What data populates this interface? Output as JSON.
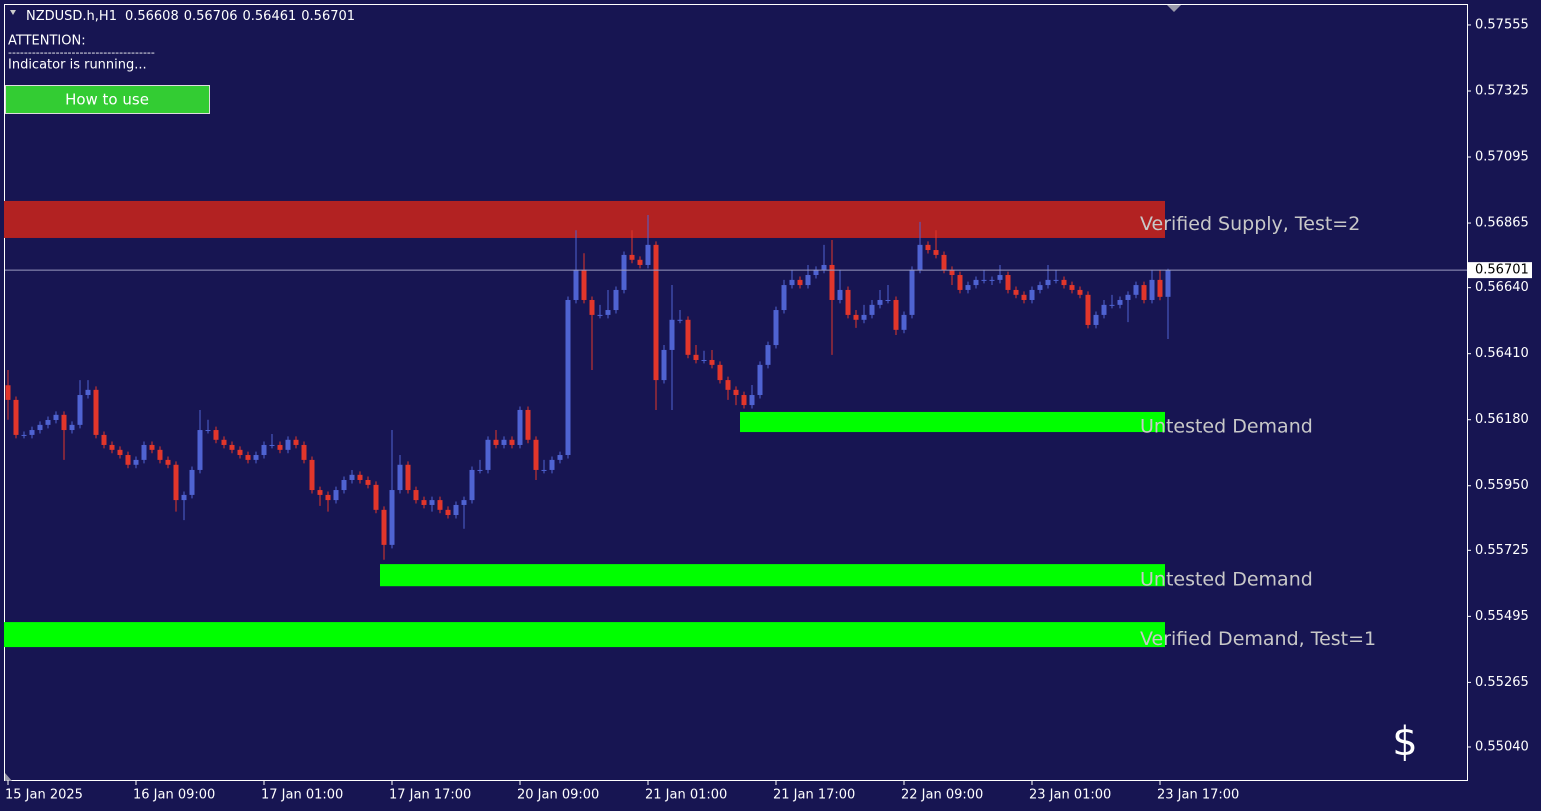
{
  "chart_data": {
    "type": "candlestick",
    "symbol": "NZDUSD.h,H1",
    "attention": "ATTENTION:",
    "separator": "-------------------------------------",
    "status": "Indicator is running...",
    "button": "How to use",
    "icon": "$",
    "colors": {
      "background": "#171552",
      "up": "#4f63d2",
      "down": "#e2362b",
      "axis": "#ffffff",
      "price_line": "#9a9ac0"
    },
    "categories": [
      "15 Jan 2025",
      null,
      null,
      null,
      null,
      null,
      null,
      null,
      null,
      null,
      null,
      null,
      null,
      null,
      null,
      null,
      "16 Jan 09:00",
      null,
      null,
      null,
      null,
      null,
      null,
      null,
      null,
      null,
      null,
      null,
      null,
      null,
      null,
      null,
      "17 Jan 01:00",
      null,
      null,
      null,
      null,
      null,
      null,
      null,
      null,
      null,
      null,
      null,
      null,
      null,
      null,
      null,
      "17 Jan 17:00",
      null,
      null,
      null,
      null,
      null,
      null,
      null,
      null,
      null,
      null,
      null,
      null,
      null,
      null,
      null,
      "20 Jan 09:00",
      null,
      null,
      null,
      null,
      null,
      null,
      null,
      null,
      null,
      null,
      null,
      null,
      null,
      null,
      null,
      "21 Jan 01:00",
      null,
      null,
      null,
      null,
      null,
      null,
      null,
      null,
      null,
      null,
      null,
      null,
      null,
      null,
      null,
      "21 Jan 17:00",
      null,
      null,
      null,
      null,
      null,
      null,
      null,
      null,
      null,
      null,
      null,
      null,
      null,
      null,
      null,
      "22 Jan 09:00",
      null,
      null,
      null,
      null,
      null,
      null,
      null,
      null,
      null,
      null,
      null,
      null,
      null,
      null,
      null,
      "23 Jan 01:00",
      null,
      null,
      null,
      null,
      null,
      null,
      null,
      null,
      null,
      null,
      null,
      null,
      null,
      null,
      null,
      "23 Jan 17:00",
      null
    ],
    "open": [
      0.563,
      0.56249,
      0.56127,
      0.56127,
      0.56144,
      0.56162,
      0.56179,
      0.56197,
      0.56144,
      0.56162,
      0.56266,
      0.56284,
      0.56127,
      0.56092,
      0.56075,
      0.56057,
      0.56023,
      0.5604,
      0.56092,
      0.56075,
      0.5604,
      0.56023,
      0.559,
      0.55918,
      0.56005,
      0.56144,
      0.56144,
      0.5611,
      0.56092,
      0.56075,
      0.56057,
      0.5604,
      0.56057,
      0.56092,
      0.56092,
      0.56075,
      0.5611,
      0.56092,
      0.5604,
      0.55935,
      0.55918,
      0.559,
      0.55935,
      0.5597,
      0.55988,
      0.5597,
      0.55953,
      0.55866,
      0.55744,
      0.55935,
      0.56023,
      0.55935,
      0.559,
      0.55883,
      0.559,
      0.55866,
      0.55848,
      0.55883,
      0.559,
      0.56005,
      0.56005,
      0.5611,
      0.56092,
      0.5611,
      0.56092,
      0.56214,
      0.5611,
      0.56005,
      0.56005,
      0.5604,
      0.56057,
      0.56597,
      0.56702,
      0.56597,
      0.56545,
      0.56545,
      0.56562,
      0.56632,
      0.56754,
      0.56737,
      0.56719,
      0.56789,
      0.56318,
      0.56423,
      0.56528,
      0.56528,
      0.56406,
      0.56388,
      0.56388,
      0.56371,
      0.56318,
      0.56284,
      0.56266,
      0.56231,
      0.56266,
      0.56371,
      0.5644,
      0.56562,
      0.56649,
      0.56667,
      0.56649,
      0.56684,
      0.56702,
      0.56719,
      0.56597,
      0.56632,
      0.56545,
      0.56528,
      0.56545,
      0.5658,
      0.56597,
      0.56597,
      0.56493,
      0.56545,
      0.56702,
      0.56789,
      0.56771,
      0.56754,
      0.56702,
      0.56684,
      0.56632,
      0.56649,
      0.56667,
      0.56667,
      0.56667,
      0.56684,
      0.56632,
      0.56615,
      0.56597,
      0.56632,
      0.56649,
      0.56667,
      0.56667,
      0.56649,
      0.56632,
      0.56615,
      0.5651,
      0.56545,
      0.5658,
      0.5658,
      0.56597,
      0.56615,
      0.56649,
      0.56597,
      0.56667,
      0.56608
    ],
    "high": [
      0.56353,
      0.56261,
      0.56139,
      0.56156,
      0.56174,
      0.56191,
      0.56209,
      0.56209,
      0.56174,
      0.56318,
      0.56318,
      0.56296,
      0.56139,
      0.56104,
      0.56087,
      0.56069,
      0.56052,
      0.56104,
      0.56104,
      0.56087,
      0.56052,
      0.56035,
      0.5593,
      0.56017,
      0.56214,
      0.5618,
      0.56156,
      0.56122,
      0.56104,
      0.56087,
      0.56069,
      0.56069,
      0.56104,
      0.5613,
      0.56104,
      0.56122,
      0.56122,
      0.56104,
      0.56052,
      0.55947,
      0.5593,
      0.55947,
      0.55982,
      0.56005,
      0.56,
      0.55982,
      0.55965,
      0.55878,
      0.56144,
      0.56057,
      0.56035,
      0.55947,
      0.55912,
      0.55912,
      0.55912,
      0.55878,
      0.55895,
      0.55912,
      0.56017,
      0.5604,
      0.56122,
      0.56144,
      0.56122,
      0.56122,
      0.56226,
      0.56226,
      0.56122,
      0.5604,
      0.56052,
      0.56069,
      0.56609,
      0.5684,
      0.5676,
      0.56609,
      0.5658,
      0.56632,
      0.56644,
      0.56766,
      0.5684,
      0.56749,
      0.56893,
      0.56801,
      0.5644,
      0.56649,
      0.56562,
      0.5654,
      0.5644,
      0.5642,
      0.56423,
      0.56383,
      0.5633,
      0.56296,
      0.56278,
      0.56301,
      0.56383,
      0.56452,
      0.56574,
      0.56667,
      0.56702,
      0.56679,
      0.56719,
      0.56714,
      0.56789,
      0.56806,
      0.56702,
      0.56644,
      0.56562,
      0.5658,
      0.56597,
      0.56632,
      0.56649,
      0.56609,
      0.56557,
      0.56714,
      0.56869,
      0.56801,
      0.5684,
      0.56766,
      0.56714,
      0.56696,
      0.56661,
      0.56679,
      0.56702,
      0.56679,
      0.56719,
      0.56696,
      0.56644,
      0.56627,
      0.56644,
      0.56661,
      0.56719,
      0.56702,
      0.56679,
      0.56661,
      0.56644,
      0.56627,
      0.56557,
      0.56597,
      0.56615,
      0.56609,
      0.56627,
      0.56661,
      0.56661,
      0.56702,
      0.56702,
      0.56706
    ],
    "low": [
      0.5618,
      0.56115,
      0.56115,
      0.56115,
      0.56132,
      0.5615,
      0.56167,
      0.5604,
      0.56132,
      0.5615,
      0.56254,
      0.56115,
      0.5608,
      0.56063,
      0.56045,
      0.56011,
      0.56011,
      0.56028,
      0.56063,
      0.56028,
      0.56011,
      0.5586,
      0.5583,
      0.55906,
      0.55993,
      0.56132,
      0.56098,
      0.5608,
      0.56063,
      0.56045,
      0.56028,
      0.56028,
      0.56045,
      0.5608,
      0.56063,
      0.56063,
      0.5608,
      0.56028,
      0.55923,
      0.5588,
      0.5586,
      0.55888,
      0.55923,
      0.55958,
      0.55958,
      0.55941,
      0.55854,
      0.55692,
      0.55732,
      0.55923,
      0.55923,
      0.55888,
      0.55871,
      0.5586,
      0.55854,
      0.55836,
      0.55836,
      0.558,
      0.55888,
      0.55993,
      0.55993,
      0.5608,
      0.5608,
      0.5608,
      0.5608,
      0.56098,
      0.5597,
      0.55993,
      0.55993,
      0.56028,
      0.56045,
      0.56585,
      0.56585,
      0.56353,
      0.56533,
      0.56533,
      0.5655,
      0.5662,
      0.56725,
      0.56707,
      0.56707,
      0.56214,
      0.56306,
      0.56214,
      0.56516,
      0.56394,
      0.56376,
      0.56376,
      0.56359,
      0.56306,
      0.56249,
      0.56231,
      0.56219,
      0.56219,
      0.56254,
      0.56359,
      0.56428,
      0.5655,
      0.56637,
      0.56637,
      0.56637,
      0.56672,
      0.5669,
      0.56406,
      0.56585,
      0.56533,
      0.565,
      0.56516,
      0.56533,
      0.56568,
      0.56585,
      0.56475,
      0.56481,
      0.56533,
      0.5669,
      0.56759,
      0.56742,
      0.5669,
      0.56649,
      0.5662,
      0.5662,
      0.56637,
      0.56655,
      0.56649,
      0.56655,
      0.5662,
      0.56603,
      0.56585,
      0.56585,
      0.5662,
      0.56637,
      0.56655,
      0.56637,
      0.5662,
      0.56603,
      0.56498,
      0.56498,
      0.56533,
      0.56568,
      0.56568,
      0.5652,
      0.56603,
      0.56585,
      0.56585,
      0.56596,
      0.56461
    ],
    "close": [
      0.56249,
      0.56127,
      0.56127,
      0.56144,
      0.56162,
      0.56179,
      0.56197,
      0.56144,
      0.56162,
      0.56266,
      0.56284,
      0.56127,
      0.56092,
      0.56075,
      0.56057,
      0.56023,
      0.5604,
      0.56092,
      0.56075,
      0.5604,
      0.56023,
      0.559,
      0.55918,
      0.56005,
      0.56144,
      0.56144,
      0.5611,
      0.56092,
      0.56075,
      0.56057,
      0.5604,
      0.56057,
      0.56092,
      0.56092,
      0.56075,
      0.5611,
      0.56092,
      0.5604,
      0.55935,
      0.55918,
      0.559,
      0.55935,
      0.5597,
      0.55988,
      0.5597,
      0.55953,
      0.55866,
      0.55744,
      0.55935,
      0.56023,
      0.55935,
      0.559,
      0.55883,
      0.559,
      0.55866,
      0.55848,
      0.55883,
      0.559,
      0.56005,
      0.56005,
      0.5611,
      0.56092,
      0.5611,
      0.56092,
      0.56214,
      0.5611,
      0.56005,
      0.56005,
      0.5604,
      0.56057,
      0.56597,
      0.56702,
      0.56597,
      0.56545,
      0.56545,
      0.56562,
      0.56632,
      0.56754,
      0.56737,
      0.56719,
      0.56789,
      0.56318,
      0.56423,
      0.56528,
      0.56528,
      0.56406,
      0.56388,
      0.56388,
      0.56371,
      0.56318,
      0.56284,
      0.56266,
      0.56231,
      0.56266,
      0.56371,
      0.5644,
      0.56562,
      0.56649,
      0.56667,
      0.56649,
      0.56684,
      0.56702,
      0.56719,
      0.56597,
      0.56632,
      0.56545,
      0.56528,
      0.56545,
      0.5658,
      0.56597,
      0.56597,
      0.56493,
      0.56545,
      0.56702,
      0.56789,
      0.56771,
      0.56754,
      0.56702,
      0.56684,
      0.56632,
      0.56649,
      0.56667,
      0.56667,
      0.56667,
      0.56684,
      0.56632,
      0.56615,
      0.56597,
      0.56632,
      0.56649,
      0.56667,
      0.56667,
      0.56649,
      0.56632,
      0.56615,
      0.5651,
      0.56545,
      0.5658,
      0.5658,
      0.56597,
      0.56615,
      0.56649,
      0.56597,
      0.56667,
      0.56608,
      0.56701
    ],
    "zones": [
      {
        "label": "Verified Supply, Test=2",
        "top": 0.56942,
        "bottom": 0.56813,
        "from": 0,
        "color": "#b22222"
      },
      {
        "label": "Untested Demand",
        "top": 0.56207,
        "bottom": 0.56137,
        "from": 92,
        "color": "#00ff00"
      },
      {
        "label": "Untested Demand",
        "top": 0.55677,
        "bottom": 0.556,
        "from": 47,
        "color": "#00ff00"
      },
      {
        "label": "Verified Demand, Test=1",
        "top": 0.55475,
        "bottom": 0.55388,
        "from": 0,
        "color": "#00ff00"
      }
    ],
    "ylim": [
      0.54925,
      0.57628
    ],
    "yticks": [
      0.57555,
      0.57325,
      0.57095,
      0.56865,
      {
        "value": 0.5664,
        "label": "0.56640"
      },
      {
        "value": 0.5641,
        "label": "0.56410"
      },
      {
        "value": 0.5618,
        "label": "0.56180"
      },
      {
        "value": 0.5595,
        "label": "0.55950"
      },
      0.55725,
      0.55495,
      0.55265,
      {
        "value": 0.5504,
        "label": "0.55040"
      }
    ]
  }
}
